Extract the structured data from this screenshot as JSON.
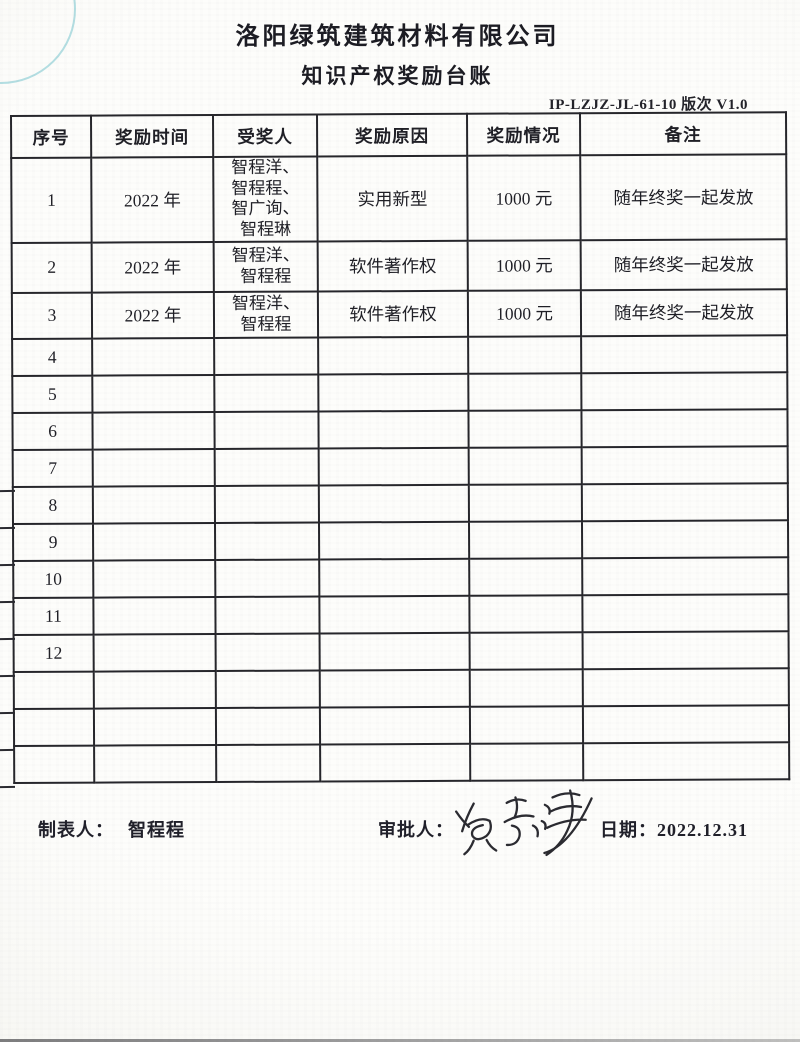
{
  "document": {
    "company_title": "洛阳绿筑建筑材料有限公司",
    "subtitle": "知识产权奖励台账",
    "doc_code": "IP-LZJZ-JL-61-10 版次 V1.0"
  },
  "table": {
    "headers": [
      "序号",
      "奖励时间",
      "受奖人",
      "奖励原因",
      "奖励情况",
      "备注"
    ],
    "rows": [
      {
        "no": "1",
        "time": "2022 年",
        "recipients": "智程洋、\n智程程、\n智广询、\n智程琳",
        "reason": "实用新型",
        "amount": "1000 元",
        "remark": "随年终奖一起发放"
      },
      {
        "no": "2",
        "time": "2022 年",
        "recipients": "智程洋、\n智程程",
        "reason": "软件著作权",
        "amount": "1000 元",
        "remark": "随年终奖一起发放"
      },
      {
        "no": "3",
        "time": "2022 年",
        "recipients": "智程洋、\n智程程",
        "reason": "软件著作权",
        "amount": "1000 元",
        "remark": "随年终奖一起发放"
      },
      {
        "no": "4",
        "time": "",
        "recipients": "",
        "reason": "",
        "amount": "",
        "remark": ""
      },
      {
        "no": "5",
        "time": "",
        "recipients": "",
        "reason": "",
        "amount": "",
        "remark": ""
      },
      {
        "no": "6",
        "time": "",
        "recipients": "",
        "reason": "",
        "amount": "",
        "remark": ""
      },
      {
        "no": "7",
        "time": "",
        "recipients": "",
        "reason": "",
        "amount": "",
        "remark": ""
      },
      {
        "no": "8",
        "time": "",
        "recipients": "",
        "reason": "",
        "amount": "",
        "remark": ""
      },
      {
        "no": "9",
        "time": "",
        "recipients": "",
        "reason": "",
        "amount": "",
        "remark": ""
      },
      {
        "no": "10",
        "time": "",
        "recipients": "",
        "reason": "",
        "amount": "",
        "remark": ""
      },
      {
        "no": "11",
        "time": "",
        "recipients": "",
        "reason": "",
        "amount": "",
        "remark": ""
      },
      {
        "no": "12",
        "time": "",
        "recipients": "",
        "reason": "",
        "amount": "",
        "remark": ""
      },
      {
        "no": "",
        "time": "",
        "recipients": "",
        "reason": "",
        "amount": "",
        "remark": ""
      },
      {
        "no": "",
        "time": "",
        "recipients": "",
        "reason": "",
        "amount": "",
        "remark": ""
      },
      {
        "no": "",
        "time": "",
        "recipients": "",
        "reason": "",
        "amount": "",
        "remark": ""
      }
    ]
  },
  "footer": {
    "preparer_label": "制表人：",
    "preparer_name": "智程程",
    "approver_label": "审批人：",
    "approver_signature_text": "智程洋",
    "date_text": "日期：2022.12.31"
  }
}
